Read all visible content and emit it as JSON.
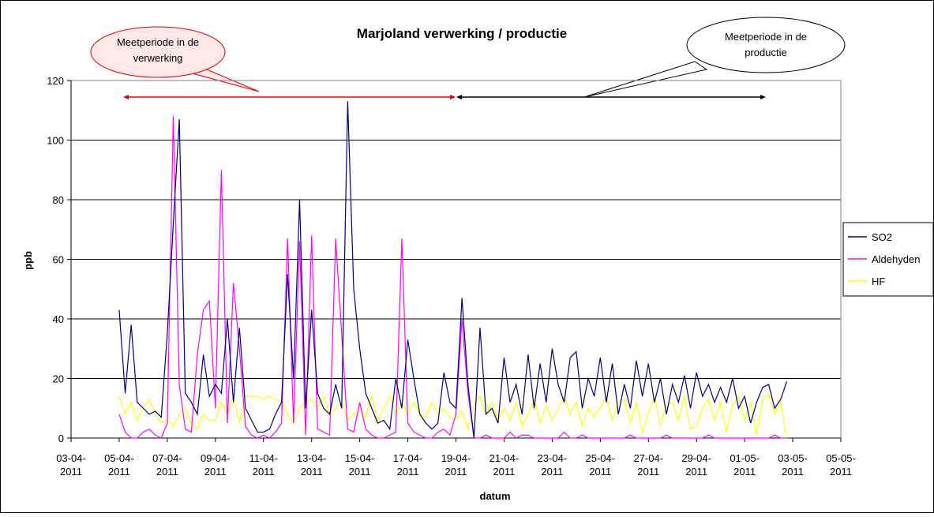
{
  "chart_data": {
    "type": "line",
    "title": "Marjoland verwerking / productie",
    "x_label": "datum",
    "y_label": "ppb",
    "annotations": [
      "Meetperiode in de verwerking",
      "Meetperiode in de productie"
    ],
    "x": [
      40638,
      40638.25,
      40638.5,
      40638.75,
      40639,
      40639.25,
      40639.5,
      40639.75,
      40640,
      40640.25,
      40640.5,
      40640.75,
      40641,
      40641.25,
      40641.5,
      40641.75,
      40642,
      40642.25,
      40642.5,
      40642.75,
      40643,
      40643.25,
      40643.5,
      40643.75,
      40644,
      40644.25,
      40644.5,
      40644.75,
      40645,
      40645.25,
      40645.5,
      40645.75,
      40646,
      40646.25,
      40646.5,
      40646.75,
      40647,
      40647.25,
      40647.5,
      40647.75,
      40648,
      40648.25,
      40648.5,
      40648.75,
      40649,
      40649.25,
      40649.5,
      40649.75,
      40650,
      40650.25,
      40650.5,
      40650.75,
      40651,
      40651.25,
      40651.5,
      40651.75,
      40652,
      40652.25,
      40652.5,
      40652.75,
      40653,
      40653.25,
      40653.5,
      40653.75,
      40654,
      40654.25,
      40654.5,
      40654.75,
      40655,
      40655.25,
      40655.5,
      40655.75,
      40656,
      40656.25,
      40656.5,
      40656.75,
      40657,
      40657.25,
      40657.5,
      40657.75,
      40658,
      40658.25,
      40658.5,
      40658.75,
      40659,
      40659.25,
      40659.5,
      40659.75,
      40660,
      40660.25,
      40660.5,
      40660.75,
      40661,
      40661.25,
      40661.5,
      40661.75,
      40662,
      40662.25,
      40662.5,
      40662.75,
      40663,
      40663.25,
      40663.5,
      40663.75,
      40664,
      40664.25,
      40664.5,
      40664.75,
      40665,
      40665.25,
      40665.5,
      40665.75
    ],
    "series": [
      {
        "name": "SO2",
        "color": "#000080",
        "values": [
          43,
          15,
          38,
          12,
          10,
          8,
          9,
          7,
          35,
          72,
          107,
          15,
          12,
          8,
          28,
          14,
          18,
          15,
          40,
          12,
          37,
          10,
          6,
          2,
          2,
          3,
          8,
          12,
          55,
          20,
          80,
          10,
          43,
          15,
          10,
          8,
          18,
          10,
          113,
          50,
          30,
          15,
          10,
          5,
          6,
          3,
          20,
          10,
          33,
          20,
          8,
          5,
          3,
          5,
          22,
          12,
          10,
          47,
          18,
          0,
          37,
          8,
          10,
          5,
          27,
          12,
          18,
          8,
          28,
          10,
          25,
          12,
          30,
          18,
          12,
          27,
          29,
          10,
          20,
          14,
          27,
          12,
          25,
          8,
          18,
          10,
          26,
          14,
          25,
          12,
          20,
          8,
          18,
          12,
          21,
          10,
          22,
          14,
          18,
          12,
          17,
          12,
          20,
          10,
          14,
          5,
          12,
          17,
          18,
          10,
          13,
          19
        ]
      },
      {
        "name": "Aldehyden",
        "color": "#ff00ff",
        "values": [
          8,
          2,
          0,
          0,
          2,
          3,
          1,
          0,
          5,
          108,
          18,
          3,
          2,
          28,
          43,
          46,
          10,
          90,
          5,
          52,
          30,
          4,
          1,
          0,
          1,
          0,
          2,
          5,
          67,
          5,
          66,
          1,
          68,
          3,
          2,
          1,
          67,
          35,
          3,
          2,
          12,
          3,
          1,
          0,
          0,
          1,
          2,
          67,
          5,
          2,
          1,
          0,
          0,
          2,
          3,
          1,
          8,
          40,
          15,
          0,
          0,
          1,
          0,
          0,
          0,
          2,
          0,
          1,
          1,
          0,
          0,
          0,
          0,
          0,
          2,
          0,
          0,
          1,
          0,
          0,
          0,
          0,
          0,
          0,
          0,
          1,
          0,
          0,
          0,
          0,
          0,
          1,
          0,
          0,
          0,
          0,
          0,
          0,
          1,
          0,
          0,
          0,
          0,
          0,
          0,
          0,
          0,
          0,
          0,
          1,
          0,
          0
        ]
      },
      {
        "name": "HF",
        "color": "#ffff00",
        "values": [
          14,
          8,
          12,
          6,
          10,
          13,
          8,
          5,
          6,
          4,
          8,
          10,
          5,
          3,
          8,
          6,
          6,
          12,
          8,
          14,
          5,
          14,
          14,
          14,
          13,
          14,
          13,
          12,
          8,
          5,
          10,
          12,
          13,
          10,
          14,
          8,
          10,
          12,
          6,
          8,
          9,
          7,
          14,
          6,
          10,
          14,
          8,
          12,
          8,
          12,
          8,
          7,
          12,
          8,
          10,
          7,
          6,
          9,
          3,
          11,
          14,
          8,
          12,
          6,
          10,
          6,
          12,
          4,
          8,
          13,
          5,
          11,
          6,
          10,
          14,
          8,
          12,
          4,
          10,
          7,
          10,
          14,
          6,
          12,
          13,
          5,
          12,
          2,
          8,
          14,
          4,
          11,
          12,
          6,
          14,
          3,
          4,
          10,
          13,
          6,
          12,
          2,
          11,
          14,
          6,
          12,
          1,
          13,
          15,
          8,
          12,
          0
        ]
      }
    ],
    "xlim": [
      40636,
      40668
    ],
    "xticks": [
      {
        "value": 40636,
        "label": "03-04-2011"
      },
      {
        "value": 40638,
        "label": "05-04-2011"
      },
      {
        "value": 40640,
        "label": "07-04-2011"
      },
      {
        "value": 40642,
        "label": "09-04-2011"
      },
      {
        "value": 40644,
        "label": "11-04-2011"
      },
      {
        "value": 40646,
        "label": "13-04-2011"
      },
      {
        "value": 40648,
        "label": "15-04-2011"
      },
      {
        "value": 40650,
        "label": "17-04-2011"
      },
      {
        "value": 40652,
        "label": "19-04-2011"
      },
      {
        "value": 40654,
        "label": "21-04-2011"
      },
      {
        "value": 40656,
        "label": "23-04-2011"
      },
      {
        "value": 40658,
        "label": "25-04-2011"
      },
      {
        "value": 40660,
        "label": "27-04-2011"
      },
      {
        "value": 40662,
        "label": "29-04-2011"
      },
      {
        "value": 40664,
        "label": "01-05-2011"
      },
      {
        "value": 40666,
        "label": "03-05-2011"
      },
      {
        "value": 40668,
        "label": "05-05-2011"
      }
    ],
    "ylim": [
      0,
      120
    ],
    "yticks": [
      0,
      20,
      40,
      60,
      80,
      100,
      120
    ],
    "grid": true,
    "legend": "right"
  }
}
